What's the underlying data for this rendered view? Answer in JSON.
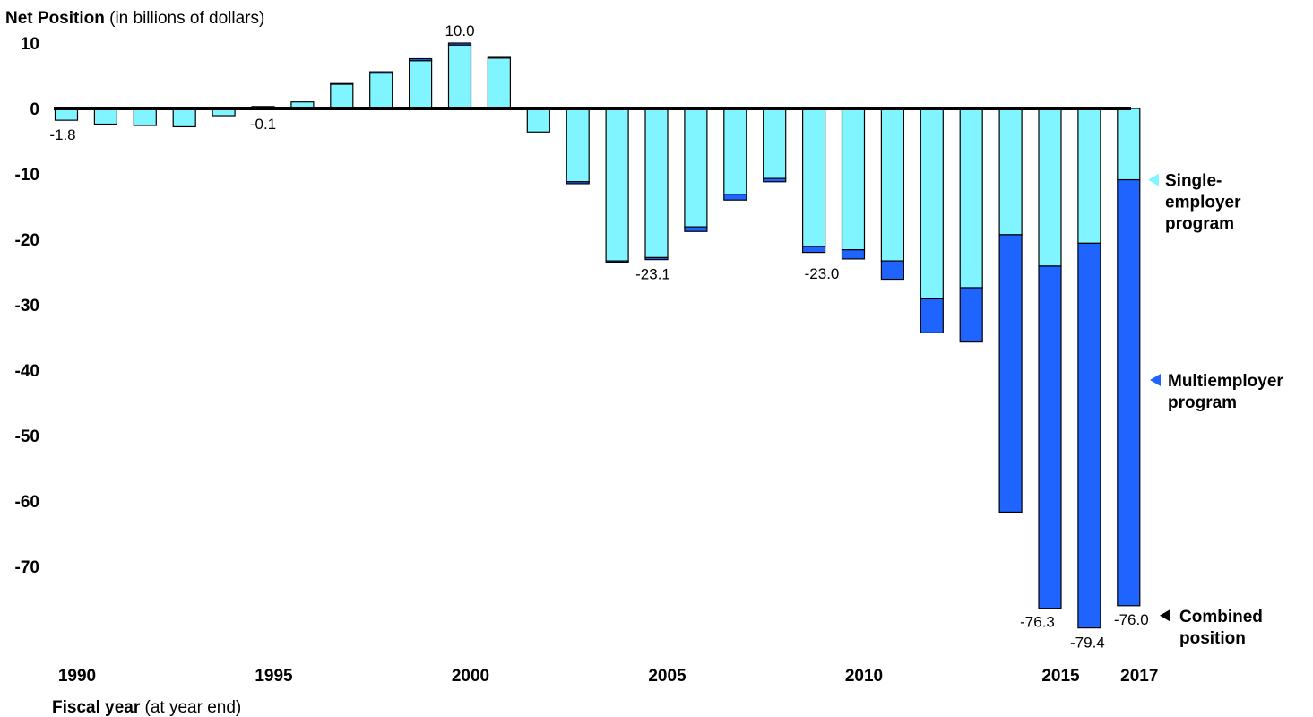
{
  "chart_data": {
    "type": "bar",
    "stacked": true,
    "title_bold": "Net Position",
    "title_rest": "(in billions of dollars)",
    "xlabel_bold": "Fiscal year",
    "xlabel_rest": "(at year end)",
    "ylim": [
      -80,
      10
    ],
    "yticks": [
      "10",
      "0",
      "-10",
      "-20",
      "-30",
      "-40",
      "-50",
      "-60",
      "-70"
    ],
    "ytick_values": [
      10,
      0,
      -10,
      -20,
      -30,
      -40,
      -50,
      -60,
      -70
    ],
    "grid": false,
    "categories": [
      "1990",
      "1991",
      "1992",
      "1993",
      "1994",
      "1995",
      "1996",
      "1997",
      "1998",
      "1999",
      "2000",
      "2001",
      "2002",
      "2003",
      "2004",
      "2005",
      "2006",
      "2007",
      "2008",
      "2009",
      "2010",
      "2011",
      "2012",
      "2013",
      "2014",
      "2015",
      "2016",
      "2017"
    ],
    "xtick_labels": [
      {
        "year": "1990",
        "label": "1990"
      },
      {
        "year": "1995",
        "label": "1995"
      },
      {
        "year": "2000",
        "label": "2000"
      },
      {
        "year": "2005",
        "label": "2005"
      },
      {
        "year": "2010",
        "label": "2010"
      },
      {
        "year": "2015",
        "label": "2015"
      },
      {
        "year": "2017",
        "label": "2017"
      }
    ],
    "series": [
      {
        "name": "Single-employer program",
        "color": "#80F4FF",
        "values": [
          -1.8,
          -2.4,
          -2.6,
          -2.8,
          -1.1,
          0.3,
          1.0,
          3.7,
          5.4,
          7.3,
          9.7,
          7.7,
          -3.6,
          -11.2,
          -23.3,
          -22.8,
          -18.1,
          -13.1,
          -10.7,
          -21.1,
          -21.6,
          -23.3,
          -29.1,
          -27.4,
          -19.3,
          -24.1,
          -20.6,
          -10.9
        ]
      },
      {
        "name": "Multiemployer program",
        "color": "#1F64FF",
        "values": [
          0.0,
          0.0,
          0.0,
          0.0,
          0.0,
          -0.4,
          0.0,
          0.1,
          0.2,
          0.3,
          0.3,
          0.1,
          0.0,
          -0.3,
          -0.2,
          -0.3,
          -0.7,
          -0.9,
          -0.5,
          -0.9,
          -1.4,
          -2.8,
          -5.2,
          -8.3,
          -42.4,
          -52.3,
          -58.8,
          -65.1
        ]
      }
    ],
    "data_labels": [
      {
        "year": "1990",
        "text": "-1.8",
        "value": -1.8
      },
      {
        "year": "1995",
        "text": "-0.1",
        "value": -0.1
      },
      {
        "year": "2000",
        "text": "10.0",
        "value": 10.0
      },
      {
        "year": "2005",
        "text": "-23.1",
        "value": -23.1
      },
      {
        "year": "2010",
        "text": "-23.0",
        "value": -23.0
      },
      {
        "year": "2015",
        "text": "-76.3",
        "value": -76.3
      },
      {
        "year": "2016",
        "text": "-79.4",
        "value": -79.4
      },
      {
        "year": "2017",
        "text": "-76.0",
        "value": -76.0
      }
    ],
    "legend": [
      {
        "label_lines": [
          "Single-",
          "employer",
          "program"
        ],
        "color": "#80F4FF",
        "marker": "left-triangle",
        "value": -10.9
      },
      {
        "label_lines": [
          "Multiemployer",
          "program"
        ],
        "color": "#1F64FF",
        "marker": "left-triangle",
        "value": -41.5
      },
      {
        "label_lines": [
          "Combined",
          "position"
        ],
        "color": "#000000",
        "marker": "left-triangle",
        "value": -76.0
      }
    ],
    "legend_placement": "right"
  }
}
